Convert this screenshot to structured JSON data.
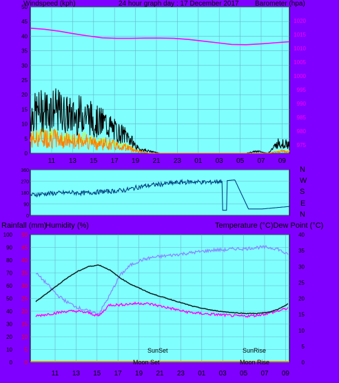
{
  "header": {
    "left_title": "Windspeed (kph)",
    "center_title": "24 hour graph day : 17 December 2017",
    "right_title": "Barometer (hpa)"
  },
  "direction_labels": [
    "N",
    "W",
    "S",
    "E",
    "N"
  ],
  "bottom_header": {
    "left_title": "Rainfall (mm)",
    "mid_title": "Humidity (%)",
    "right_title": "Temperature (°C)Dew Point (°C)"
  },
  "annotations": {
    "sunset": "SunSet",
    "sunrise": "SunRise",
    "moonset": "Moon Set",
    "moonrise": "Moon Rise"
  },
  "colors": {
    "background": "#8000ff",
    "plot_bg": "#80ffff",
    "grid": "#64b4c8",
    "barometer": "#ff00ff",
    "wind_gust": "#000000",
    "wind_avg": "#ff8000",
    "wind_avg2": "#c0ff40",
    "direction": "#004080",
    "temperature": "#102020",
    "dewpoint": "#ff00ff",
    "humidity": "#8888ff",
    "rain_axis": "#ff0000"
  },
  "chart_data": [
    {
      "type": "line",
      "name": "wind-and-barometer",
      "x_ticks": [
        "11",
        "13",
        "15",
        "17",
        "19",
        "21",
        "23",
        "01",
        "03",
        "05",
        "07",
        "09"
      ],
      "left_axis": {
        "label": "Windspeed (kph)",
        "ticks": [
          0,
          5,
          10,
          15,
          20,
          25,
          30,
          35,
          40,
          45,
          50
        ],
        "ylim": [
          0,
          50
        ]
      },
      "right_axis": {
        "label": "Barometer (hpa)",
        "ticks": [
          975,
          980,
          985,
          990,
          995,
          1000,
          1005,
          1010,
          1015,
          1020
        ],
        "ylim": [
          972,
          1025
        ]
      },
      "barometer_hpa": [
        1017.3,
        1016.9,
        1016.2,
        1015.3,
        1014.5,
        1013.8,
        1013.6,
        1013.6,
        1013.7,
        1013.7,
        1013.6,
        1013.2,
        1012.6,
        1012.0,
        1011.4,
        1011.3,
        1011.6,
        1012.0,
        1012.4
      ],
      "barometer_x_hours": [
        0,
        1,
        2,
        3,
        4,
        5,
        6,
        7,
        8,
        9,
        10,
        11,
        12,
        13,
        14,
        15,
        16,
        17,
        18
      ],
      "gust_envelope_kph": [
        18,
        20,
        21,
        19,
        17,
        19,
        15,
        14,
        10,
        8,
        2,
        1,
        0,
        0,
        0,
        0,
        0,
        0,
        0,
        0,
        0,
        1,
        0,
        5,
        4
      ],
      "average_envelope_kph": [
        7,
        8,
        8,
        7,
        6,
        7,
        5,
        5,
        4,
        3,
        1,
        0,
        0,
        0,
        0,
        0,
        0,
        0,
        0,
        0,
        0,
        0,
        0,
        1,
        1
      ]
    },
    {
      "type": "line",
      "name": "wind-direction",
      "categories_right": [
        "N",
        "W",
        "S",
        "E",
        "N"
      ],
      "ticks": [
        360,
        270,
        180,
        90,
        0
      ],
      "direction_deg": [
        160,
        170,
        175,
        180,
        175,
        185,
        190,
        200,
        225,
        240,
        250,
        260,
        265,
        260,
        270,
        280,
        50,
        50,
        60,
        70
      ],
      "x_hours": [
        0,
        1,
        2,
        3,
        4,
        5,
        6,
        7,
        8,
        9,
        10,
        11,
        12,
        13,
        14,
        15,
        16,
        17,
        18,
        19
      ]
    },
    {
      "type": "line",
      "name": "temperature-humidity",
      "x_ticks": [
        "11",
        "13",
        "15",
        "17",
        "19",
        "21",
        "23",
        "01",
        "03",
        "05",
        "07",
        "09"
      ],
      "humidity_axis": {
        "label": "Humidity (%)",
        "ticks": [
          0,
          10,
          20,
          30,
          40,
          50,
          60,
          70,
          80,
          90,
          100
        ],
        "ylim": [
          0,
          100
        ]
      },
      "rain_axis": {
        "label": "Rainfall (mm)",
        "ticks": [
          0,
          5,
          10,
          15,
          20,
          25,
          30,
          35,
          40,
          45,
          50
        ],
        "ylim": [
          0,
          50
        ]
      },
      "temp_axis": {
        "label": "Temperature (°C)",
        "ticks": [
          0,
          5,
          10,
          15,
          20,
          25,
          30,
          35,
          40
        ],
        "ylim": [
          0,
          40
        ]
      },
      "x_hours": [
        0,
        1,
        2,
        3,
        4,
        5,
        6,
        7,
        8,
        9,
        10,
        11,
        12,
        13,
        14,
        15,
        16,
        17,
        18,
        19,
        20,
        21,
        22,
        23,
        24
      ],
      "temperature_c": [
        19.0,
        21.5,
        24.0,
        26.5,
        28.5,
        30.0,
        30.5,
        29.0,
        26.5,
        24.5,
        23.0,
        21.5,
        20.5,
        19.5,
        18.5,
        17.5,
        16.8,
        16.2,
        15.8,
        15.5,
        15.3,
        15.3,
        15.6,
        16.5,
        18.3
      ],
      "dewpoint_c": [
        14.5,
        15.0,
        15.5,
        16.0,
        16.0,
        15.5,
        14.5,
        18.0,
        18.0,
        18.3,
        18.5,
        18.2,
        17.5,
        16.8,
        16.0,
        15.5,
        15.2,
        15.0,
        14.8,
        14.5,
        14.5,
        14.7,
        15.3,
        16.0,
        17.0
      ],
      "humidity_pct": [
        70,
        62,
        53,
        47,
        43,
        40,
        38,
        52,
        68,
        76,
        80,
        82,
        83,
        84,
        85,
        86,
        87,
        88,
        88,
        89,
        89,
        90,
        90,
        89,
        84
      ]
    }
  ]
}
